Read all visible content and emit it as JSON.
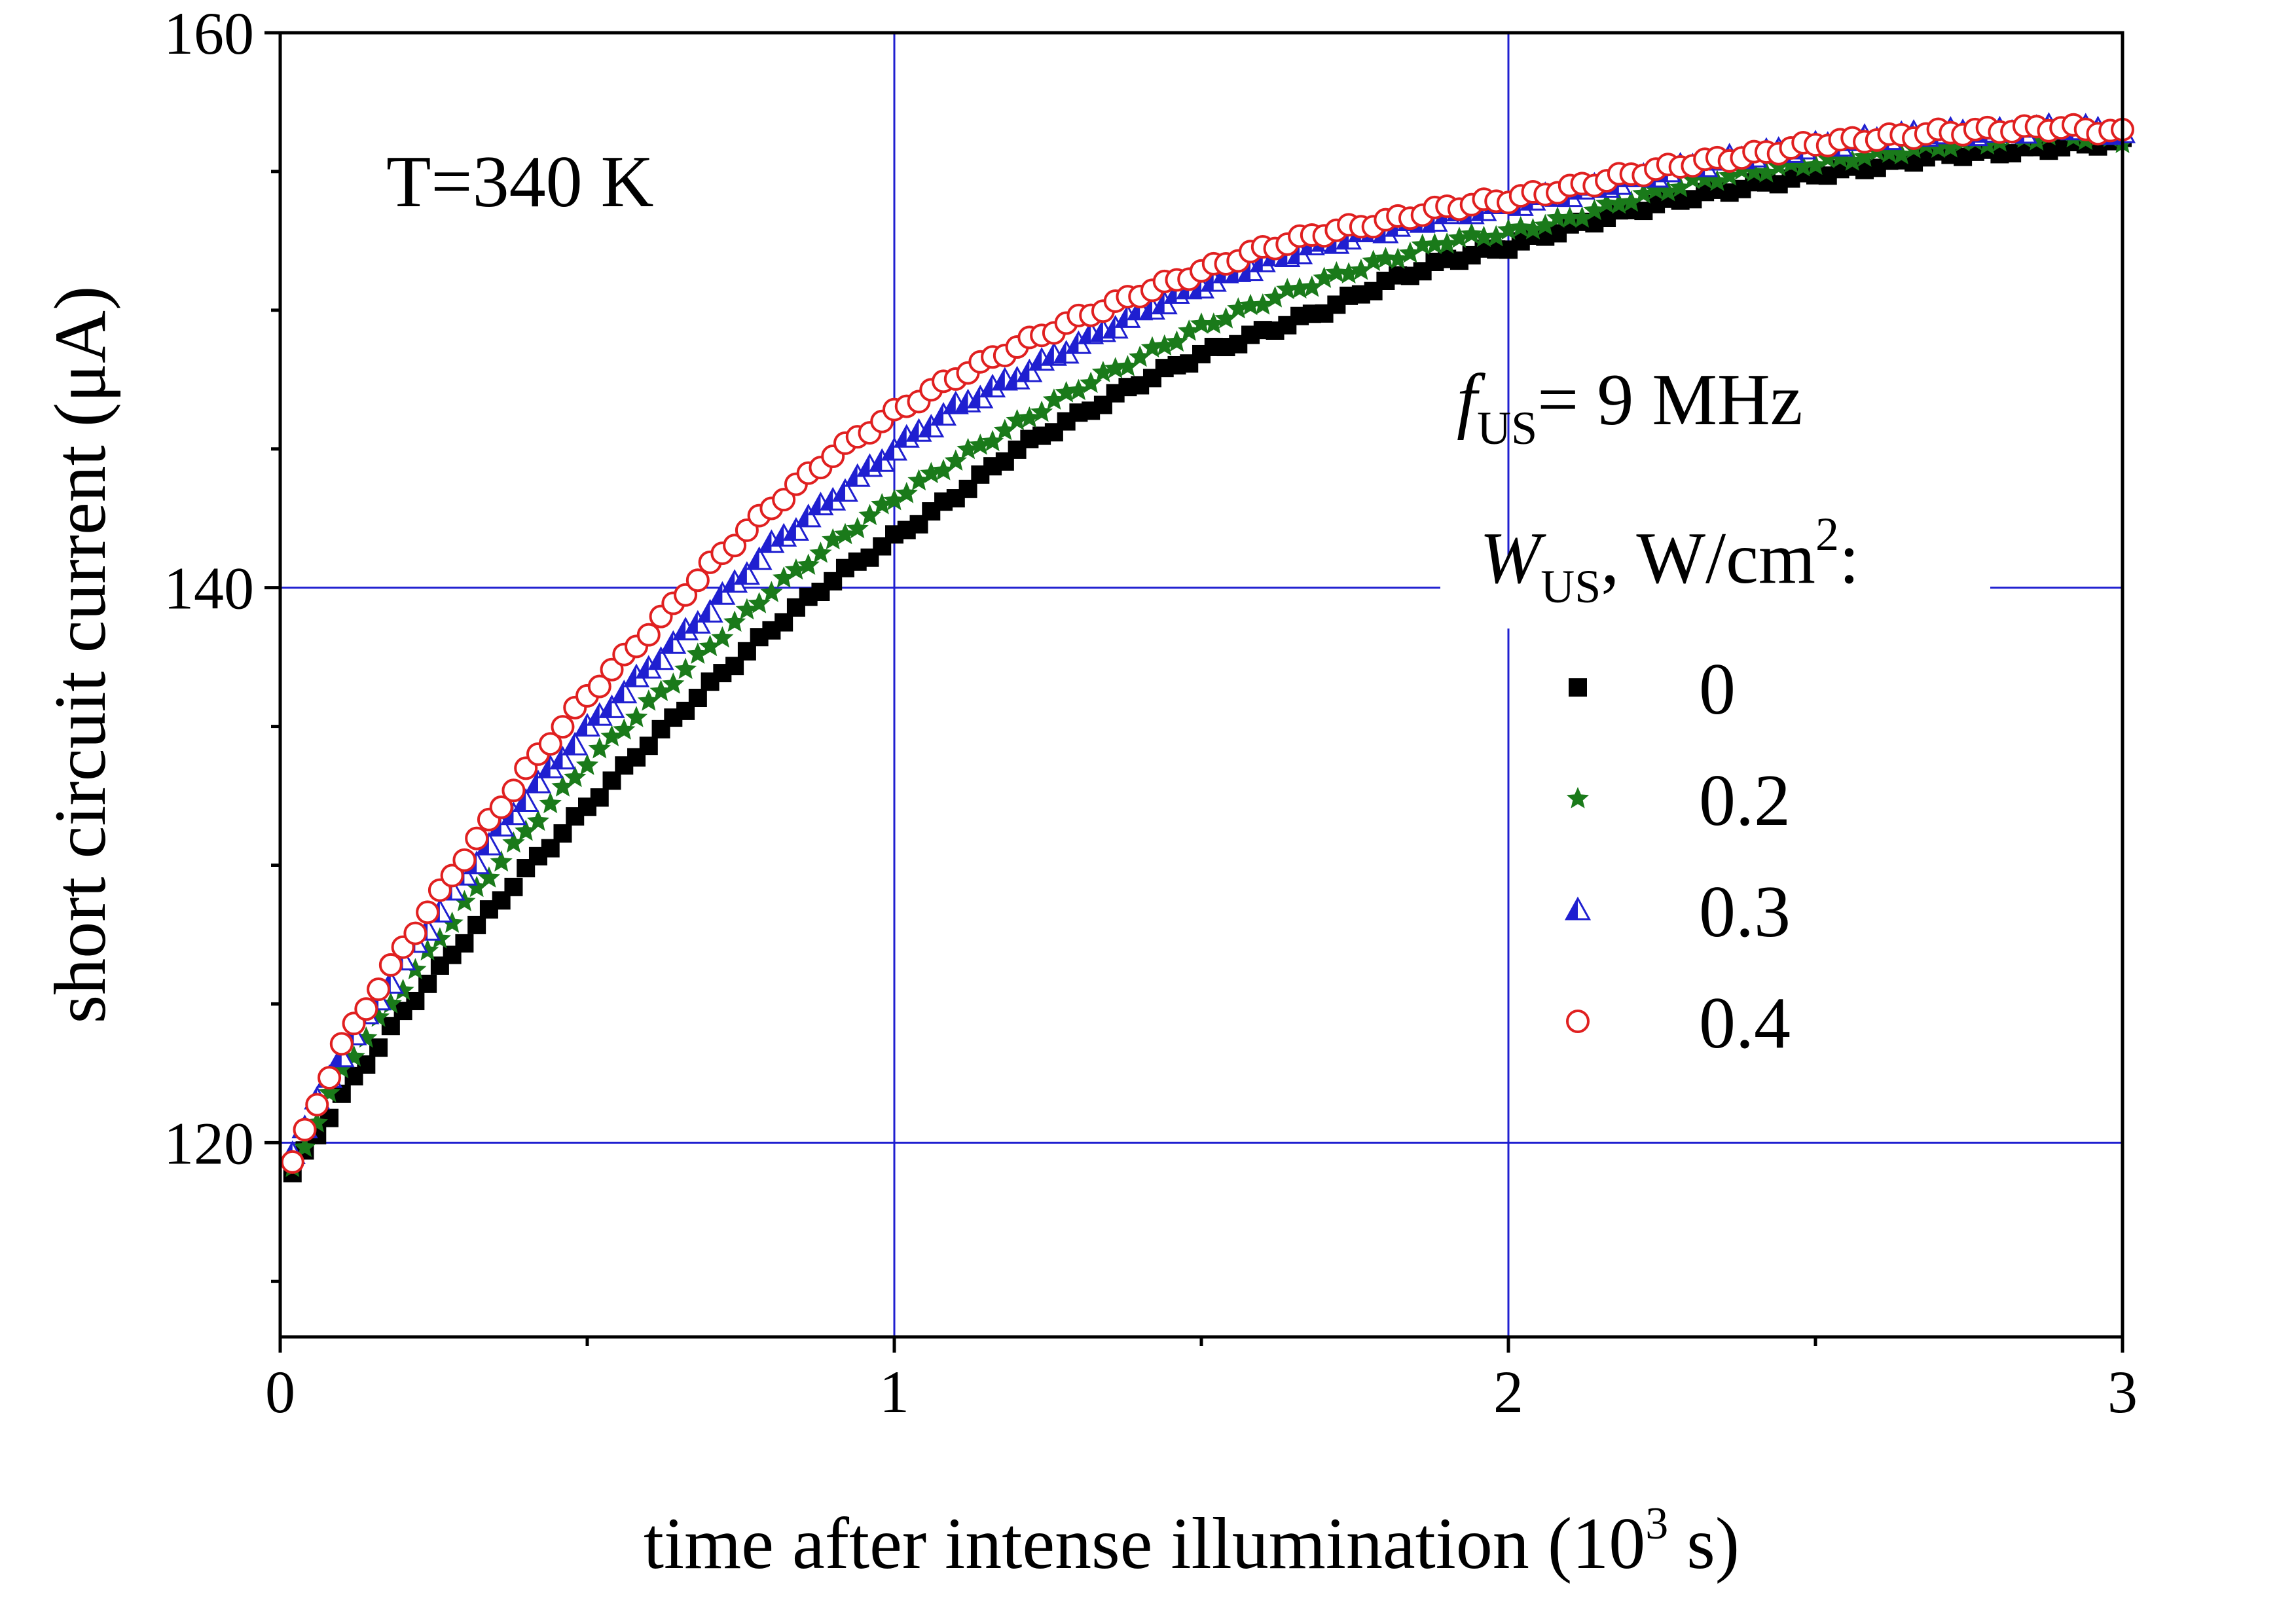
{
  "chart_data": {
    "type": "scatter",
    "xlabel": "time after intense illumination (10",
    "xlabel_sup": "3",
    "xlabel_suffix": " s)",
    "ylabel": "short circuit current (μA)",
    "xlim": [
      0,
      3
    ],
    "ylim": [
      113,
      160
    ],
    "x_ticks": [
      0,
      1,
      2,
      3
    ],
    "y_ticks": [
      120,
      140,
      160
    ],
    "grid": true,
    "grid_color": "#1f1fd0",
    "annotation": "T=340 K",
    "legend": {
      "placement": "center-right",
      "freq_symbol": "f",
      "freq_sub": "US",
      "freq_text": "= 9 MHz",
      "power_symbol": "W",
      "power_sub": "US",
      "power_text": ", W/cm",
      "power_sup": "2",
      "power_colon": ":"
    },
    "series": [
      {
        "name": "0",
        "marker": "square",
        "color": "#000000",
        "x": [
          0.02,
          0.1,
          0.2,
          0.3,
          0.4,
          0.5,
          0.6,
          0.7,
          0.8,
          0.9,
          1.0,
          1.1,
          1.2,
          1.3,
          1.4,
          1.5,
          1.6,
          1.7,
          1.8,
          1.9,
          2.0,
          2.1,
          2.2,
          2.3,
          2.4,
          2.5,
          2.6,
          2.7,
          2.8,
          2.9,
          3.0
        ],
        "y": [
          118.9,
          121.7,
          124.7,
          127.3,
          129.8,
          132.1,
          134.4,
          136.5,
          138.5,
          140.3,
          141.8,
          143.3,
          145.0,
          146.2,
          147.4,
          148.4,
          149.2,
          150.0,
          151.0,
          151.8,
          152.3,
          153.0,
          153.6,
          154.1,
          154.5,
          154.9,
          155.2,
          155.6,
          155.7,
          155.9,
          156.1
        ]
      },
      {
        "name": "0.2",
        "marker": "star",
        "color": "#1a7a1a",
        "x": [
          0.02,
          0.1,
          0.2,
          0.3,
          0.4,
          0.5,
          0.6,
          0.7,
          0.8,
          0.9,
          1.0,
          1.1,
          1.2,
          1.3,
          1.4,
          1.5,
          1.6,
          1.7,
          1.8,
          1.9,
          2.0,
          2.1,
          2.2,
          2.3,
          2.4,
          2.5,
          2.6,
          2.7,
          2.8,
          2.9,
          3.0
        ],
        "y": [
          119.0,
          122.6,
          125.6,
          128.6,
          131.2,
          133.7,
          135.8,
          137.9,
          139.9,
          141.6,
          143.2,
          144.6,
          145.9,
          147.2,
          148.3,
          149.4,
          150.3,
          151.1,
          151.8,
          152.5,
          152.8,
          153.3,
          154.0,
          154.6,
          155.0,
          155.3,
          155.6,
          155.9,
          156.1,
          156.3,
          156.1
        ]
      },
      {
        "name": "0.3",
        "marker": "triangle",
        "color": "#1f1fd0",
        "x": [
          0.02,
          0.1,
          0.2,
          0.3,
          0.4,
          0.5,
          0.6,
          0.7,
          0.8,
          0.9,
          1.0,
          1.1,
          1.2,
          1.3,
          1.4,
          1.5,
          1.6,
          1.7,
          1.8,
          1.9,
          2.0,
          2.1,
          2.2,
          2.3,
          2.4,
          2.5,
          2.6,
          2.7,
          2.8,
          2.9,
          3.0
        ],
        "y": [
          119.7,
          123.2,
          126.5,
          129.6,
          132.4,
          134.9,
          137.1,
          139.2,
          141.5,
          143.2,
          145.0,
          146.5,
          147.6,
          148.8,
          149.9,
          150.9,
          151.7,
          152.4,
          152.9,
          153.4,
          153.8,
          154.2,
          154.7,
          155.2,
          155.6,
          155.9,
          156.2,
          156.4,
          156.4,
          156.6,
          156.4
        ]
      },
      {
        "name": "0.4",
        "marker": "circle",
        "color": "#e02020",
        "x": [
          0.02,
          0.1,
          0.2,
          0.3,
          0.4,
          0.5,
          0.6,
          0.7,
          0.8,
          0.9,
          1.0,
          1.1,
          1.2,
          1.3,
          1.4,
          1.5,
          1.6,
          1.7,
          1.8,
          1.9,
          2.0,
          2.1,
          2.2,
          2.3,
          2.4,
          2.5,
          2.6,
          2.7,
          2.8,
          2.9,
          3.0
        ],
        "y": [
          119.3,
          123.5,
          127.0,
          130.3,
          133.4,
          136.1,
          138.4,
          140.8,
          142.9,
          144.8,
          146.3,
          147.6,
          148.7,
          149.7,
          150.6,
          151.4,
          152.2,
          152.8,
          153.2,
          153.7,
          154.0,
          154.4,
          154.9,
          155.3,
          155.6,
          156.0,
          156.2,
          156.4,
          156.5,
          156.6,
          156.4
        ]
      }
    ]
  }
}
